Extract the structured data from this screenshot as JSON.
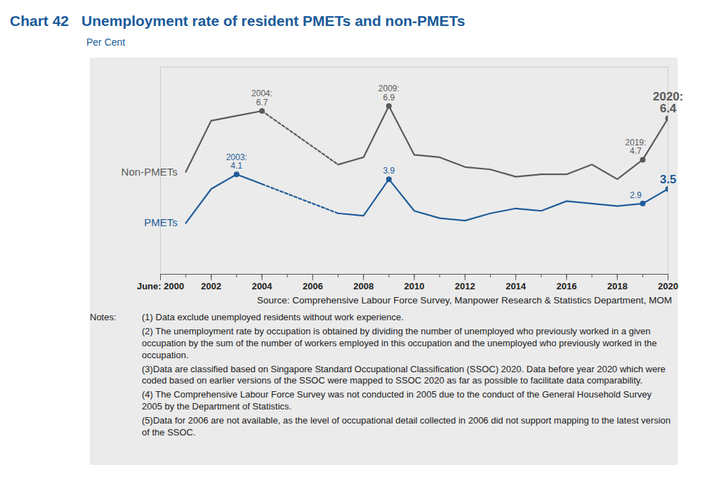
{
  "chart_data": {
    "type": "line",
    "chart_number": "Chart 42",
    "title": "Unemployment rate of resident PMETs and non-PMETs",
    "subtitle": "Per Cent",
    "x": [
      2001,
      2002,
      2003,
      2004,
      2005,
      2006,
      2007,
      2008,
      2009,
      2010,
      2011,
      2012,
      2013,
      2014,
      2015,
      2016,
      2017,
      2018,
      2019,
      2020
    ],
    "series": [
      {
        "name": "Non-PMETs",
        "color": "#5a5a5a",
        "values": [
          4.2,
          6.3,
          6.5,
          6.7,
          null,
          null,
          4.5,
          4.8,
          6.9,
          4.9,
          4.8,
          4.4,
          4.3,
          4.0,
          4.1,
          4.1,
          4.5,
          3.9,
          4.7,
          6.4
        ]
      },
      {
        "name": "PMETs",
        "color": "#1f5c99",
        "values": [
          2.1,
          3.5,
          4.1,
          3.7,
          null,
          null,
          2.5,
          2.4,
          3.9,
          2.6,
          2.3,
          2.2,
          2.5,
          2.7,
          2.6,
          3.0,
          2.9,
          2.8,
          2.9,
          3.5
        ]
      }
    ],
    "xlim": [
      2000,
      2020
    ],
    "xticks": [
      {
        "value": 2000,
        "label": "June: 2000"
      },
      2002,
      2004,
      2006,
      2008,
      2010,
      2012,
      2014,
      2016,
      2018,
      2020
    ],
    "ylim": [
      0,
      8.5
    ],
    "yticks": [],
    "tick_labels": "x",
    "grid": false,
    "annotations": [
      {
        "series": "Non-PMETs",
        "x": 2004,
        "y": 6.7,
        "text": "2004:\n6.7"
      },
      {
        "series": "Non-PMETs",
        "x": 2009,
        "y": 6.9,
        "text": "2009:\n6.9"
      },
      {
        "series": "Non-PMETs",
        "x": 2019,
        "y": 4.7,
        "text": "2019:\n4.7"
      },
      {
        "series": "Non-PMETs",
        "x": 2020,
        "y": 6.4,
        "text": "2020:\n6.4"
      },
      {
        "series": "PMETs",
        "x": 2003,
        "y": 4.1,
        "text": "2003:\n4.1"
      },
      {
        "series": "PMETs",
        "x": 2009,
        "y": 3.9,
        "text": "3.9"
      },
      {
        "series": "PMETs",
        "x": 2019,
        "y": 2.9,
        "text": "2.9"
      },
      {
        "series": "PMETs",
        "x": 2020,
        "y": 3.5,
        "text": "3.5"
      }
    ],
    "source": "Source: Comprehensive Labour Force Survey, Manpower Research & Statistics Department, MOM",
    "notes_label": "Notes:",
    "notes": [
      "(1) Data exclude unemployed residents without work experience.",
      "(2) The unemployment rate by occupation is obtained by dividing the number of unemployed who previously worked in a given occupation by the sum of the number of workers employed in this occupation and the unemployed who previously worked in the occupation.",
      "(3)Data are classified based on Singapore Standard Occupational Classification (SSOC) 2020. Data before year 2020 which were coded based on earlier versions of the SSOC were mapped to SSOC 2020 as far as possible to facilitate data comparability.",
      "(4) The Comprehensive Labour Force Survey was not conducted in 2005 due to the conduct of the General Household Survey 2005 by the Department of Statistics.",
      "(5)Data for 2006 are not available, as the level of occupational detail collected in 2006 did not support mapping to the latest version of the SSOC."
    ]
  }
}
